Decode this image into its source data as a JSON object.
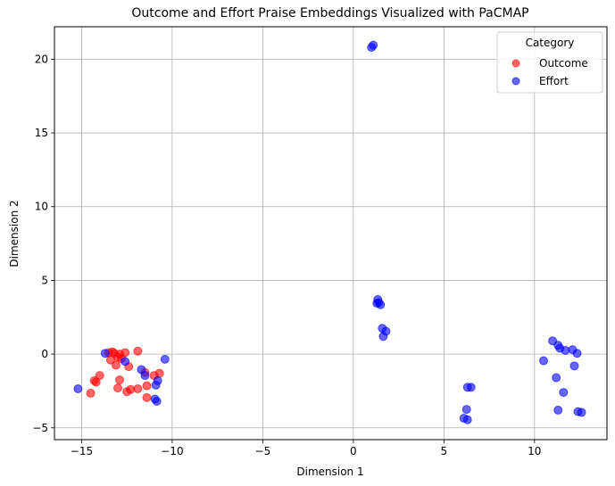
{
  "chart_data": {
    "type": "scatter",
    "title": "Outcome and Effort Praise Embeddings Visualized with PaCMAP",
    "xlabel": "Dimension 1",
    "ylabel": "Dimension 2",
    "xlim": [
      -16.5,
      14.0
    ],
    "ylim": [
      -5.8,
      22.2
    ],
    "xticks": [
      -15,
      -10,
      -5,
      0,
      5,
      10
    ],
    "xtick_labels": [
      "−15",
      "−10",
      "−5",
      "0",
      "5",
      "10"
    ],
    "yticks": [
      -5,
      0,
      5,
      10,
      15,
      20
    ],
    "ytick_labels": [
      "−5",
      "0",
      "5",
      "10",
      "15",
      "20"
    ],
    "grid": true,
    "legend": {
      "title": "Category",
      "position": "top-right",
      "entries": [
        "Outcome",
        "Effort"
      ]
    },
    "series": [
      {
        "name": "Outcome",
        "color": "#ff0000",
        "alpha": 0.6,
        "points": [
          [
            -13.5,
            0.1
          ],
          [
            -13.3,
            0.15
          ],
          [
            -13.2,
            0.05
          ],
          [
            -13.0,
            -0.2
          ],
          [
            -12.8,
            -0.3
          ],
          [
            -12.6,
            0.1
          ],
          [
            -12.9,
            0.0
          ],
          [
            -13.4,
            -0.4
          ],
          [
            -13.1,
            -0.75
          ],
          [
            -12.4,
            -0.85
          ],
          [
            -14.0,
            -1.45
          ],
          [
            -14.3,
            -1.8
          ],
          [
            -14.2,
            -1.9
          ],
          [
            -12.9,
            -1.75
          ],
          [
            -11.9,
            0.2
          ],
          [
            -11.5,
            -1.25
          ],
          [
            -11.0,
            -1.45
          ],
          [
            -10.7,
            -1.3
          ],
          [
            -12.5,
            -2.55
          ],
          [
            -12.3,
            -2.4
          ],
          [
            -11.9,
            -2.35
          ],
          [
            -11.4,
            -2.15
          ],
          [
            -13.0,
            -2.3
          ],
          [
            -14.5,
            -2.65
          ],
          [
            -11.4,
            -2.95
          ]
        ]
      },
      {
        "name": "Effort",
        "color": "#0000ff",
        "alpha": 0.6,
        "points": [
          [
            1.0,
            20.8
          ],
          [
            1.1,
            20.95
          ],
          [
            1.35,
            3.7
          ],
          [
            1.4,
            3.5
          ],
          [
            1.5,
            3.35
          ],
          [
            1.3,
            3.45
          ],
          [
            1.6,
            1.75
          ],
          [
            1.8,
            1.55
          ],
          [
            1.65,
            1.2
          ],
          [
            6.3,
            -2.25
          ],
          [
            6.5,
            -2.25
          ],
          [
            6.25,
            -3.75
          ],
          [
            6.1,
            -4.35
          ],
          [
            6.3,
            -4.45
          ],
          [
            11.0,
            0.9
          ],
          [
            11.3,
            0.6
          ],
          [
            11.4,
            0.4
          ],
          [
            11.7,
            0.25
          ],
          [
            12.1,
            0.3
          ],
          [
            12.35,
            0.05
          ],
          [
            10.5,
            -0.45
          ],
          [
            12.2,
            -0.8
          ],
          [
            11.2,
            -1.6
          ],
          [
            11.6,
            -2.6
          ],
          [
            11.3,
            -3.8
          ],
          [
            12.4,
            -3.9
          ],
          [
            12.6,
            -3.95
          ],
          [
            -13.7,
            0.05
          ],
          [
            -12.6,
            -0.5
          ],
          [
            -11.7,
            -1.05
          ],
          [
            -11.5,
            -1.45
          ],
          [
            -10.4,
            -0.35
          ],
          [
            -10.8,
            -1.8
          ],
          [
            -10.9,
            -2.1
          ],
          [
            -10.95,
            -3.05
          ],
          [
            -10.85,
            -3.2
          ],
          [
            -15.2,
            -2.35
          ]
        ]
      }
    ]
  }
}
